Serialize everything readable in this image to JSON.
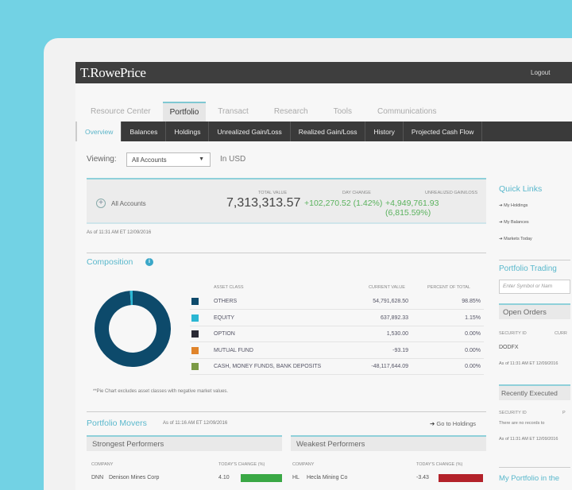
{
  "brand": "T.RowePrice",
  "header": {
    "logout": "Logout"
  },
  "main_tabs": [
    {
      "label": "Resource Center"
    },
    {
      "label": "Portfolio",
      "active": true
    },
    {
      "label": "Transact"
    },
    {
      "label": "Research"
    },
    {
      "label": "Tools"
    },
    {
      "label": "Communications"
    }
  ],
  "sub_tabs": [
    {
      "label": "Overview",
      "active": true
    },
    {
      "label": "Balances"
    },
    {
      "label": "Holdings"
    },
    {
      "label": "Unrealized Gain/Loss"
    },
    {
      "label": "Realized Gain/Loss"
    },
    {
      "label": "History"
    },
    {
      "label": "Projected Cash Flow"
    }
  ],
  "viewing": {
    "label": "Viewing:",
    "selected": "All Accounts",
    "currency": "In USD"
  },
  "summary": {
    "account": "All Accounts",
    "total_value_label": "TOTAL VALUE",
    "total_value": "7,313,313.57",
    "day_change_label": "DAY CHANGE",
    "day_change": "+102,270.52 (1.42%)",
    "unrealized_label": "UNREALIZED GAIN/LOSS",
    "unrealized": "+4,949,761.93 (6,815.59%)",
    "as_of": "As of 11:31 AM ET 12/09/2016"
  },
  "composition": {
    "title": "Composition",
    "headers": [
      "ASSET CLASS",
      "CURRENT VALUE",
      "PERCENT OF TOTAL"
    ],
    "rows": [
      {
        "name": "OTHERS",
        "value": "54,791,628.50",
        "percent": "98.85%",
        "color": "#0d4a6b"
      },
      {
        "name": "EQUITY",
        "value": "637,892.33",
        "percent": "1.15%",
        "color": "#2bb7d3"
      },
      {
        "name": "OPTION",
        "value": "1,530.00",
        "percent": "0.00%",
        "color": "#2a2a35"
      },
      {
        "name": "MUTUAL FUND",
        "value": "-93.19",
        "percent": "0.00%",
        "color": "#e0842a"
      },
      {
        "name": "CASH, MONEY FUNDS, BANK DEPOSITS",
        "value": "-48,117,644.09",
        "percent": "0.00%",
        "color": "#7b9a45"
      }
    ],
    "donut": [
      98.85,
      1.15
    ],
    "footnote": "**Pie Chart excludes asset classes with negative market values."
  },
  "movers": {
    "title": "Portfolio Movers",
    "as_of": "As of 11:16 AM ET 12/09/2016",
    "link": "Go to Holdings",
    "strongest": {
      "title": "Strongest Performers",
      "col1": "COMPANY",
      "col2": "TODAY'S CHANGE (%)",
      "rows": [
        {
          "ticker": "DNN",
          "name": "Denison Mines Corp",
          "change": "4.10",
          "color": "#3aa845"
        }
      ]
    },
    "weakest": {
      "title": "Weakest Performers",
      "col1": "COMPANY",
      "col2": "TODAY'S CHANGE (%)",
      "rows": [
        {
          "ticker": "HL",
          "name": "Hecla Mining Co",
          "change": "-3.43",
          "color": "#b3222a"
        }
      ]
    }
  },
  "quick_links": {
    "title": "Quick Links",
    "items": [
      "My Holdings",
      "My Balances",
      "Markets Today"
    ]
  },
  "trading": {
    "title": "Portfolio Trading",
    "placeholder": "Enter Symbol or Nam"
  },
  "open_orders": {
    "title": "Open Orders",
    "col1": "SECURITY ID",
    "col2": "CURR",
    "row": "DODFX",
    "as_of": "As of 11:31 AM ET 12/09/2016"
  },
  "recent": {
    "title": "Recently Executed",
    "col1": "SECURITY ID",
    "col2": "P",
    "empty": "There are no records to",
    "as_of": "As of 11:31 AM ET 12/09/2016"
  },
  "news_title": "My Portfolio in the"
}
